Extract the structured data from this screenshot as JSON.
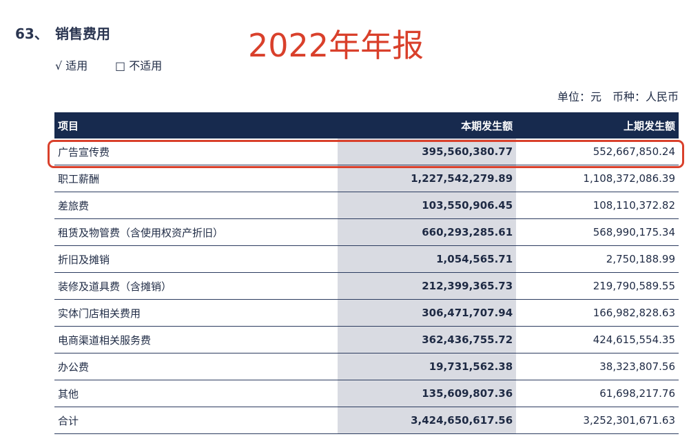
{
  "header": {
    "number": "63、",
    "title": "销售费用",
    "applicable": "√ 适用",
    "not_applicable": "□ 不适用",
    "unit": "单位：元　币种：人民币"
  },
  "annotation": "2022年年报",
  "table": {
    "columns": [
      "项目",
      "本期发生额",
      "上期发生额"
    ],
    "rows": [
      [
        "广告宣传费",
        "395,560,380.77",
        "552,667,850.24"
      ],
      [
        "职工薪酬",
        "1,227,542,279.89",
        "1,108,372,086.39"
      ],
      [
        "差旅费",
        "103,550,906.45",
        "108,110,372.82"
      ],
      [
        "租赁及物管费（含使用权资产折旧）",
        "660,293,285.61",
        "568,990,175.34"
      ],
      [
        "折旧及摊销",
        "1,054,565.71",
        "2,750,188.99"
      ],
      [
        "装修及道具费（含摊销）",
        "212,399,365.73",
        "219,790,589.55"
      ],
      [
        "实体门店相关费用",
        "306,471,707.94",
        "166,982,828.63"
      ],
      [
        "电商渠道相关服务费",
        "362,436,755.72",
        "424,615,554.35"
      ],
      [
        "办公费",
        "19,731,562.38",
        "38,323,807.56"
      ],
      [
        "其他",
        "135,609,807.36",
        "61,698,217.76"
      ],
      [
        "合计",
        "3,424,650,617.56",
        "3,252,301,671.63"
      ]
    ]
  }
}
